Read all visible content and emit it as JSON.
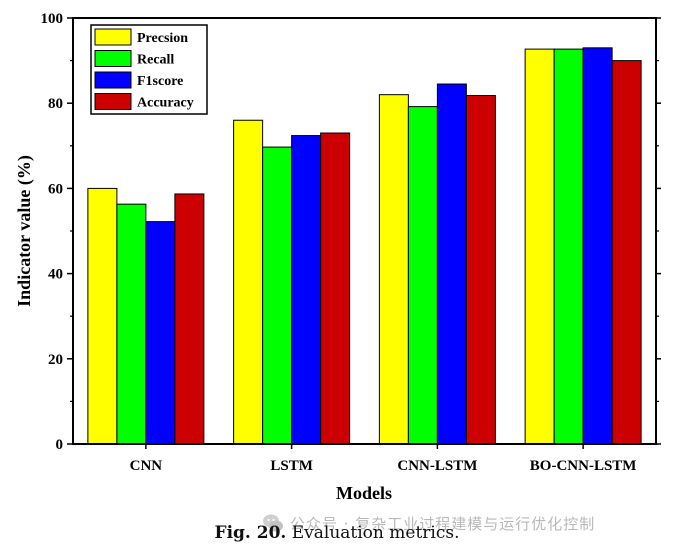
{
  "chart_data": {
    "type": "bar",
    "title": "",
    "xlabel": "Models",
    "ylabel": "Indicator value (%)",
    "ylim": [
      0,
      100
    ],
    "yticks": [
      0,
      20,
      40,
      60,
      80,
      100
    ],
    "legend_position": "top-left",
    "categories": [
      "CNN",
      "LSTM",
      "CNN-LSTM",
      "BO-CNN-LSTM"
    ],
    "series": [
      {
        "name": "Precsion",
        "color": "#ffff00",
        "values": [
          60.0,
          76.0,
          82.0,
          92.7
        ]
      },
      {
        "name": "Recall",
        "color": "#00ff00",
        "values": [
          56.3,
          69.7,
          79.2,
          92.7
        ]
      },
      {
        "name": "F1score",
        "color": "#0000ff",
        "values": [
          52.2,
          72.4,
          84.5,
          93.0
        ]
      },
      {
        "name": "Accuracy",
        "color": "#cc0000",
        "values": [
          58.7,
          73.0,
          81.8,
          90.0
        ]
      }
    ]
  },
  "caption": {
    "label": "Fig. 20.",
    "text": "Evaluation metrics."
  },
  "watermark": {
    "text": "公众号 · 复杂工业过程建模与运行优化控制"
  }
}
